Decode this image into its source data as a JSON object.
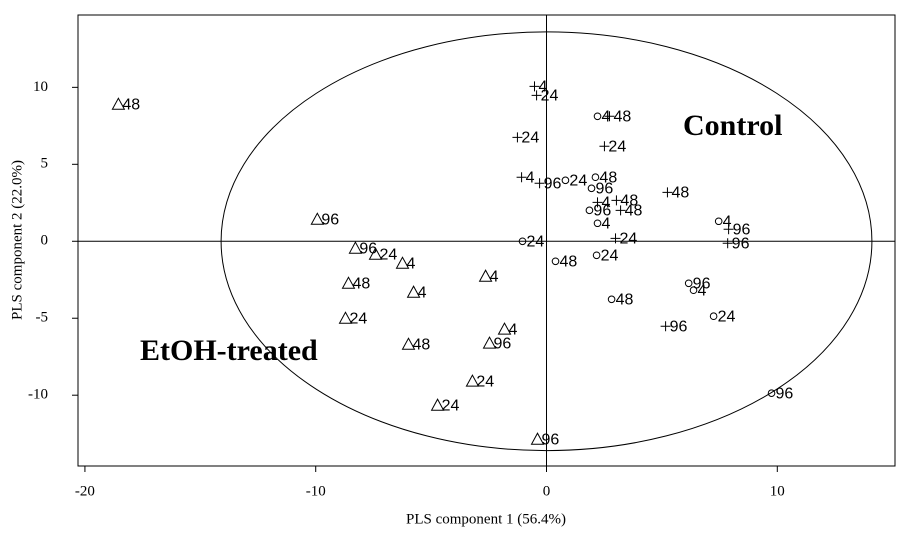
{
  "chart_data": {
    "type": "scatter",
    "x_label": "PLS component 1 (56.4%)",
    "y_label": "PLS component 2 (22.0%)",
    "annotations": [
      "Control",
      "EtOH-treated"
    ],
    "xlim": [
      -20.3,
      15.1
    ],
    "ylim": [
      -14.6,
      14.7
    ],
    "xticks": [
      -20,
      -10,
      0,
      10
    ],
    "yticks": [
      -10,
      -5,
      0,
      5,
      10
    ],
    "ellipse": {
      "rx": 14.1,
      "ry": 13.6
    },
    "color": "#000000",
    "series": [
      {
        "marker": "triangle",
        "x": [
          -18.55,
          -9.93,
          -8.28,
          -7.41,
          -6.24,
          -8.58,
          -5.76,
          -2.64,
          -8.71,
          -5.98,
          -1.82,
          -2.47,
          -3.21,
          -4.72,
          -0.39
        ],
        "values": [
          8.9,
          1.43,
          -0.45,
          -0.84,
          -1.43,
          -2.73,
          -3.31,
          -2.27,
          -5.0,
          -6.69,
          -5.71,
          -6.62,
          -9.09,
          -10.65,
          -12.86
        ],
        "labels": [
          "48",
          "96",
          "96",
          "24",
          "4",
          "48",
          "4",
          "4",
          "24",
          "48",
          "4",
          "96",
          "24",
          "24",
          "96"
        ]
      },
      {
        "marker": "circle",
        "x": [
          2.21,
          0.82,
          2.12,
          1.95,
          1.86,
          2.21,
          -1.04,
          0.39,
          2.17,
          2.82,
          7.46,
          6.16,
          6.37,
          7.24,
          9.75
        ],
        "values": [
          8.12,
          3.96,
          4.16,
          3.44,
          2.01,
          1.17,
          0.0,
          -1.3,
          -0.91,
          -3.77,
          1.3,
          -2.73,
          -3.18,
          -4.87,
          -9.87
        ],
        "labels": [
          "4",
          "24",
          "48",
          "96",
          "96",
          "4",
          "24",
          "48",
          "24",
          "48",
          "4",
          "96",
          "4",
          "24",
          "96"
        ]
      },
      {
        "marker": "plus",
        "x": [
          -0.52,
          -0.43,
          -1.26,
          2.51,
          2.73,
          -1.08,
          -0.3,
          2.21,
          3.03,
          3.21,
          2.99,
          5.24,
          7.89,
          7.85,
          5.16
        ],
        "values": [
          10.06,
          9.48,
          6.75,
          6.17,
          8.12,
          4.16,
          3.77,
          2.53,
          2.66,
          2.01,
          0.19,
          3.18,
          0.78,
          -0.13,
          -5.52
        ],
        "labels": [
          "4",
          "24",
          "24",
          "24",
          "48",
          "4",
          "96",
          "4",
          "48",
          "48",
          "24",
          "48",
          "96",
          "96",
          "96"
        ]
      }
    ]
  }
}
